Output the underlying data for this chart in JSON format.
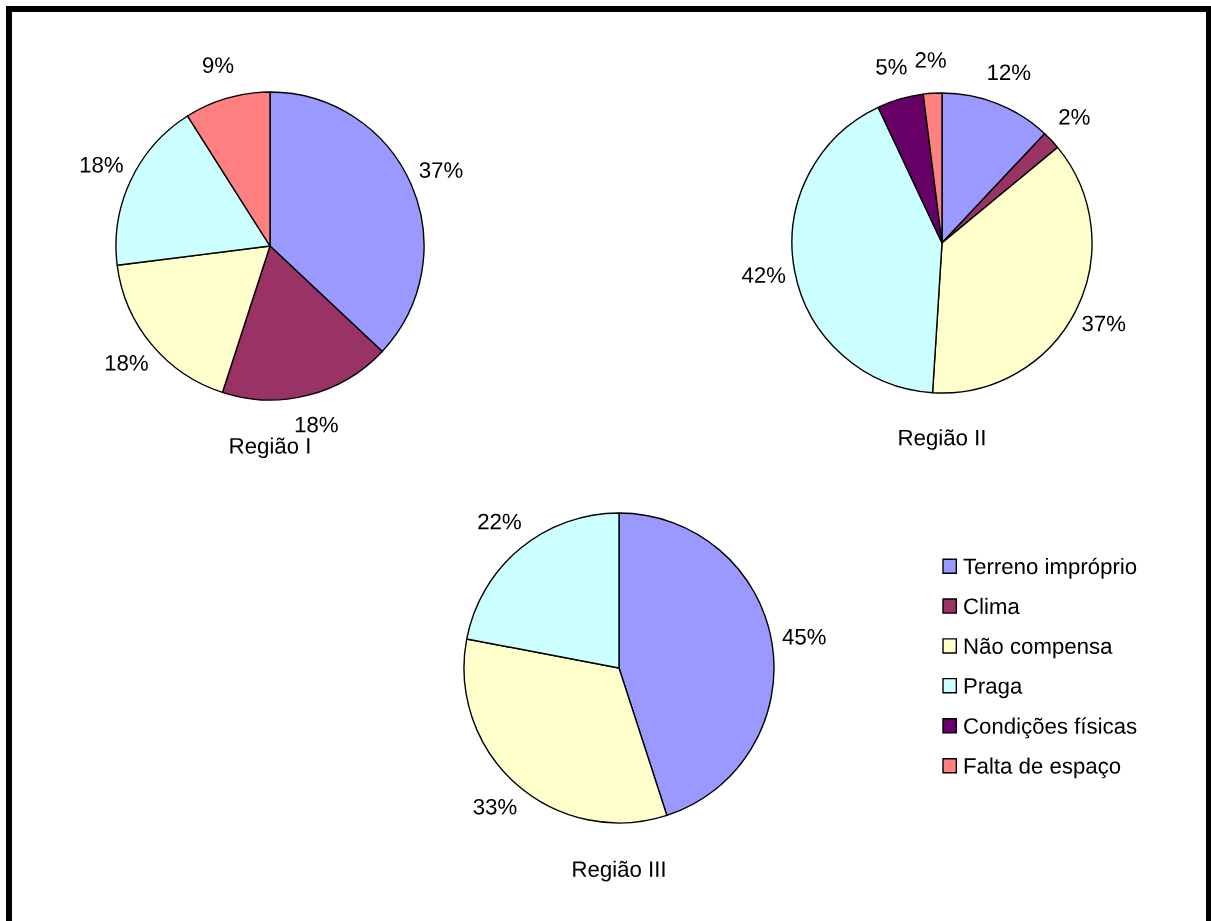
{
  "chart_data": [
    {
      "type": "pie",
      "title": "Região I",
      "categories": [
        "Terreno impróprio",
        "Clima",
        "Não compensa",
        "Praga",
        "Condições físicas",
        "Falta de espaço"
      ],
      "values": [
        37,
        18,
        18,
        18,
        null,
        9
      ],
      "colors": [
        "#9999ff",
        "#993366",
        "#ffffcc",
        "#ccffff",
        "#660066",
        "#ff8080"
      ],
      "value_labels": [
        "37%",
        "18%",
        "18%",
        "18%",
        null,
        "9%"
      ],
      "legend": "bottom right"
    },
    {
      "type": "pie",
      "title": "Região II",
      "categories": [
        null,
        null,
        null,
        null,
        null,
        null
      ],
      "values": [
        12,
        2,
        37,
        42,
        5,
        2
      ],
      "colors": [
        "#9999ff",
        "#993366",
        "#ffffcc",
        "#ccffff",
        "#660066",
        "#ff8080"
      ],
      "value_labels": [
        "12%",
        "2%",
        "37%",
        "42%",
        "5%",
        "2%"
      ]
    },
    {
      "type": "pie",
      "title": "Região III",
      "categories": [
        null,
        null,
        null,
        null,
        null,
        null
      ],
      "values": [
        45,
        null,
        33,
        22,
        null,
        null
      ],
      "colors": [
        "#9999ff",
        "#993366",
        "#ffffcc",
        "#ccffff",
        "#660066",
        "#ff8080"
      ],
      "value_labels": [
        "45%",
        null,
        "33%",
        "22%",
        null,
        null
      ]
    }
  ]
}
